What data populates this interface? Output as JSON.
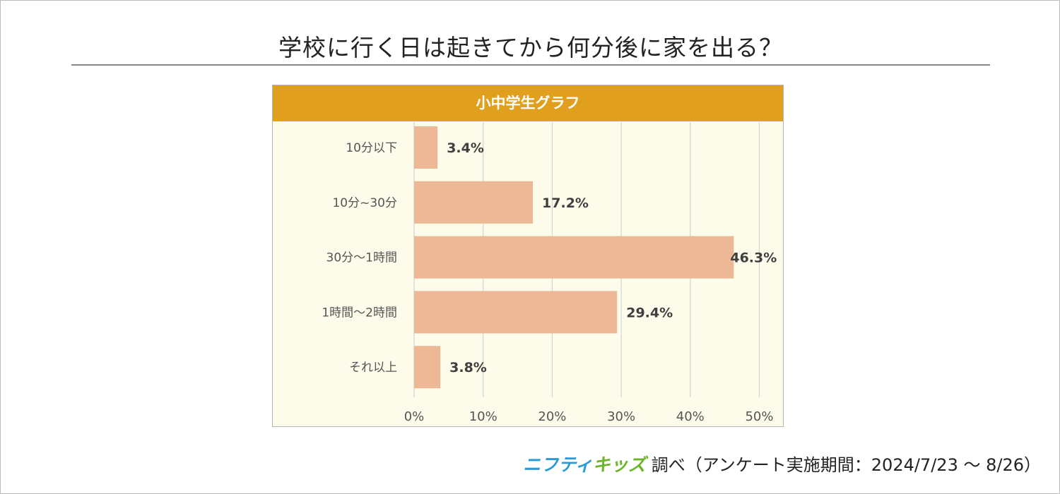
{
  "title": "学校に行く日は起きてから何分後に家を出る？",
  "panel_header": "小中学生グラフ",
  "footer": {
    "brand_part1": "ニフティ",
    "brand_part2": "キッズ",
    "text": "調べ（アンケート実施期間：2024/7/23 ～ 8/26）"
  },
  "colors": {
    "bar": "#ecb896",
    "header": "#e09f1c",
    "plot_background": "#fdfbea",
    "grid": "#d4d4d4"
  },
  "chart_data": {
    "type": "bar",
    "orientation": "horizontal",
    "categories": [
      "10分以下",
      "10分~30分",
      "30分～1時間",
      "1時間～2時間",
      "それ以上"
    ],
    "values": [
      3.4,
      17.2,
      46.3,
      29.4,
      3.8
    ],
    "value_labels": [
      "3.4%",
      "17.2%",
      "46.3%",
      "29.4%",
      "3.8%"
    ],
    "xlim": [
      0,
      50
    ],
    "x_ticks": [
      "0%",
      "10%",
      "20%",
      "30%",
      "40%",
      "50%"
    ],
    "grid": true,
    "legend": "none"
  }
}
